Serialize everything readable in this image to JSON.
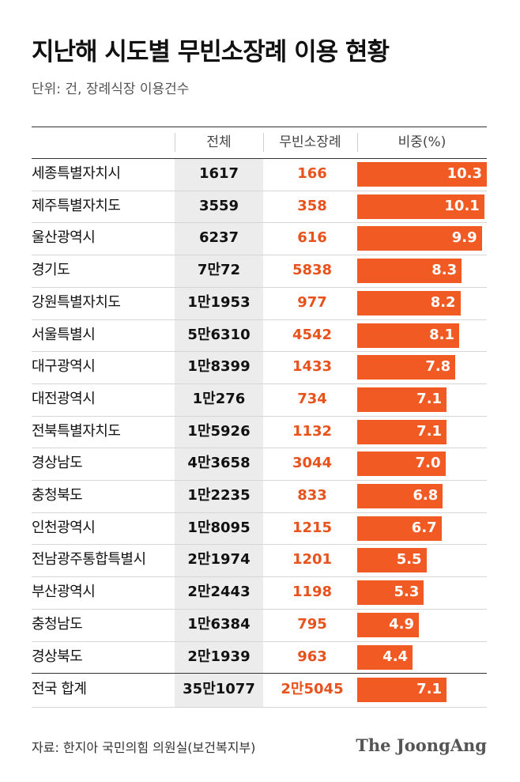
{
  "chart_data": {
    "type": "table",
    "title": "지난해 시도별 무빈소장례 이용 현황",
    "subtitle": "단위: 건, 장례식장 이용건수",
    "columns": [
      "",
      "전체",
      "무빈소장례",
      "비중(%)"
    ],
    "rows": [
      {
        "region": "세종특별자치시",
        "total": "1617",
        "mubin": "166",
        "share": 10.3
      },
      {
        "region": "제주특별자치도",
        "total": "3559",
        "mubin": "358",
        "share": 10.1
      },
      {
        "region": "울산광역시",
        "total": "6237",
        "mubin": "616",
        "share": 9.9
      },
      {
        "region": "경기도",
        "total": "7만72",
        "mubin": "5838",
        "share": 8.3
      },
      {
        "region": "강원특별자치도",
        "total": "1만1953",
        "mubin": "977",
        "share": 8.2
      },
      {
        "region": "서울특별시",
        "total": "5만6310",
        "mubin": "4542",
        "share": 8.1
      },
      {
        "region": "대구광역시",
        "total": "1만8399",
        "mubin": "1433",
        "share": 7.8
      },
      {
        "region": "대전광역시",
        "total": "1만276",
        "mubin": "734",
        "share": 7.1
      },
      {
        "region": "전북특별자치도",
        "total": "1만5926",
        "mubin": "1132",
        "share": 7.1
      },
      {
        "region": "경상남도",
        "total": "4만3658",
        "mubin": "3044",
        "share": 7.0
      },
      {
        "region": "충청북도",
        "total": "1만2235",
        "mubin": "833",
        "share": 6.8
      },
      {
        "region": "인천광역시",
        "total": "1만8095",
        "mubin": "1215",
        "share": 6.7
      },
      {
        "region": "전남광주통합특별시",
        "total": "2만1974",
        "mubin": "1201",
        "share": 5.5
      },
      {
        "region": "부산광역시",
        "total": "2만2443",
        "mubin": "1198",
        "share": 5.3
      },
      {
        "region": "충청남도",
        "total": "1만6384",
        "mubin": "795",
        "share": 4.9
      },
      {
        "region": "경상북도",
        "total": "2만1939",
        "mubin": "963",
        "share": 4.4
      }
    ],
    "summary": {
      "region": "전국 합계",
      "total": "35만1077",
      "mubin": "2만5045",
      "share": 7.1
    },
    "share_max": 10.3,
    "colors": {
      "bar": "#f25a24",
      "mubin_text": "#e8521c",
      "total_column_bg": "#ececec"
    }
  },
  "source": "자료: 한지아 국민의힘 의원실(보건복지부)",
  "brand": "The JoongAng"
}
